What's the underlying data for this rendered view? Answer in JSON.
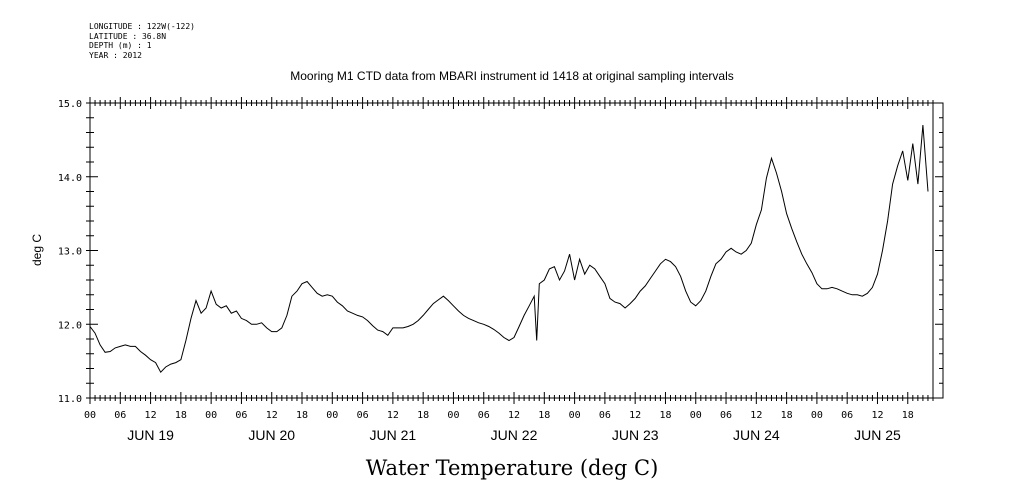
{
  "metadata": {
    "longitude": "LONGITUDE : 122W(-122)",
    "latitude": "LATITUDE : 36.8N",
    "depth": "DEPTH (m) : 1",
    "year": "YEAR : 2012"
  },
  "chart_data": {
    "type": "line",
    "title": "Mooring M1 CTD data from MBARI instrument id 1418 at original sampling intervals",
    "xlabel": "Water Temperature (deg C)",
    "ylabel": "deg C",
    "ylim": [
      11.0,
      15.0
    ],
    "yticks": [
      "11.0",
      "12.0",
      "13.0",
      "14.0",
      "15.0"
    ],
    "xlim_hours": [
      0,
      167
    ],
    "hour_ticks": [
      "00",
      "06",
      "12",
      "18",
      "00",
      "06",
      "12",
      "18",
      "00",
      "06",
      "12",
      "18",
      "00",
      "06",
      "12",
      "18",
      "00",
      "06",
      "12",
      "18",
      "00",
      "06",
      "12",
      "18",
      "00",
      "06",
      "12",
      "18"
    ],
    "day_labels": [
      "JUN 19",
      "JUN 20",
      "JUN 21",
      "JUN 22",
      "JUN 23",
      "JUN 24",
      "JUN 25"
    ],
    "grid": false,
    "series": [
      {
        "values": [
          [
            0,
            11.97
          ],
          [
            1,
            11.88
          ],
          [
            2,
            11.72
          ],
          [
            3,
            11.62
          ],
          [
            4,
            11.63
          ],
          [
            5,
            11.68
          ],
          [
            6,
            11.7
          ],
          [
            7,
            11.72
          ],
          [
            8,
            11.7
          ],
          [
            9,
            11.7
          ],
          [
            10,
            11.63
          ],
          [
            11,
            11.58
          ],
          [
            12,
            11.52
          ],
          [
            13,
            11.48
          ],
          [
            14,
            11.35
          ],
          [
            15,
            11.42
          ],
          [
            16,
            11.46
          ],
          [
            17,
            11.48
          ],
          [
            18,
            11.52
          ],
          [
            19,
            11.78
          ],
          [
            20,
            12.08
          ],
          [
            21,
            12.32
          ],
          [
            22,
            12.15
          ],
          [
            23,
            12.22
          ],
          [
            24,
            12.45
          ],
          [
            25,
            12.27
          ],
          [
            26,
            12.22
          ],
          [
            27,
            12.25
          ],
          [
            28,
            12.15
          ],
          [
            29,
            12.18
          ],
          [
            30,
            12.08
          ],
          [
            31,
            12.05
          ],
          [
            32,
            12.0
          ],
          [
            33,
            12.0
          ],
          [
            34,
            12.02
          ],
          [
            35,
            11.95
          ],
          [
            36,
            11.9
          ],
          [
            37,
            11.9
          ],
          [
            38,
            11.95
          ],
          [
            39,
            12.12
          ],
          [
            40,
            12.38
          ],
          [
            41,
            12.45
          ],
          [
            42,
            12.55
          ],
          [
            43,
            12.58
          ],
          [
            44,
            12.5
          ],
          [
            45,
            12.42
          ],
          [
            46,
            12.38
          ],
          [
            47,
            12.4
          ],
          [
            48,
            12.38
          ],
          [
            49,
            12.3
          ],
          [
            50,
            12.25
          ],
          [
            51,
            12.18
          ],
          [
            52,
            12.15
          ],
          [
            53,
            12.12
          ],
          [
            54,
            12.1
          ],
          [
            55,
            12.05
          ],
          [
            56,
            11.98
          ],
          [
            57,
            11.92
          ],
          [
            58,
            11.9
          ],
          [
            59,
            11.85
          ],
          [
            60,
            11.95
          ],
          [
            61,
            11.95
          ],
          [
            62,
            11.95
          ],
          [
            63,
            11.97
          ],
          [
            64,
            12.0
          ],
          [
            65,
            12.05
          ],
          [
            66,
            12.12
          ],
          [
            67,
            12.2
          ],
          [
            68,
            12.28
          ],
          [
            69,
            12.33
          ],
          [
            70,
            12.38
          ],
          [
            71,
            12.32
          ],
          [
            72,
            12.25
          ],
          [
            73,
            12.18
          ],
          [
            74,
            12.12
          ],
          [
            75,
            12.08
          ],
          [
            76,
            12.05
          ],
          [
            77,
            12.02
          ],
          [
            78,
            12.0
          ],
          [
            79,
            11.97
          ],
          [
            80,
            11.93
          ],
          [
            81,
            11.88
          ],
          [
            82,
            11.82
          ],
          [
            83,
            11.78
          ],
          [
            84,
            11.82
          ],
          [
            85,
            11.97
          ],
          [
            86,
            12.12
          ],
          [
            87,
            12.25
          ],
          [
            88,
            12.38
          ],
          [
            88.5,
            11.78
          ],
          [
            89,
            12.55
          ],
          [
            90,
            12.6
          ],
          [
            91,
            12.75
          ],
          [
            92,
            12.78
          ],
          [
            93,
            12.6
          ],
          [
            94,
            12.72
          ],
          [
            95,
            12.95
          ],
          [
            96,
            12.6
          ],
          [
            97,
            12.88
          ],
          [
            98,
            12.68
          ],
          [
            99,
            12.8
          ],
          [
            100,
            12.75
          ],
          [
            101,
            12.65
          ],
          [
            102,
            12.55
          ],
          [
            103,
            12.35
          ],
          [
            104,
            12.3
          ],
          [
            105,
            12.28
          ],
          [
            106,
            12.22
          ],
          [
            107,
            12.28
          ],
          [
            108,
            12.35
          ],
          [
            109,
            12.45
          ],
          [
            110,
            12.52
          ],
          [
            111,
            12.62
          ],
          [
            112,
            12.72
          ],
          [
            113,
            12.82
          ],
          [
            114,
            12.88
          ],
          [
            115,
            12.85
          ],
          [
            116,
            12.78
          ],
          [
            117,
            12.65
          ],
          [
            118,
            12.45
          ],
          [
            119,
            12.3
          ],
          [
            120,
            12.25
          ],
          [
            121,
            12.32
          ],
          [
            122,
            12.45
          ],
          [
            123,
            12.65
          ],
          [
            124,
            12.82
          ],
          [
            125,
            12.88
          ],
          [
            126,
            12.98
          ],
          [
            127,
            13.03
          ],
          [
            128,
            12.98
          ],
          [
            129,
            12.95
          ],
          [
            130,
            13.0
          ],
          [
            131,
            13.1
          ],
          [
            132,
            13.35
          ],
          [
            133,
            13.55
          ],
          [
            134,
            13.98
          ],
          [
            135,
            14.25
          ],
          [
            136,
            14.05
          ],
          [
            137,
            13.8
          ],
          [
            138,
            13.5
          ],
          [
            139,
            13.3
          ],
          [
            140,
            13.12
          ],
          [
            141,
            12.95
          ],
          [
            142,
            12.82
          ],
          [
            143,
            12.7
          ],
          [
            144,
            12.55
          ],
          [
            145,
            12.48
          ],
          [
            146,
            12.48
          ],
          [
            147,
            12.5
          ],
          [
            148,
            12.48
          ],
          [
            149,
            12.45
          ],
          [
            150,
            12.42
          ],
          [
            151,
            12.4
          ],
          [
            152,
            12.4
          ],
          [
            153,
            12.38
          ],
          [
            154,
            12.42
          ],
          [
            155,
            12.5
          ],
          [
            156,
            12.68
          ],
          [
            157,
            13.0
          ],
          [
            158,
            13.4
          ],
          [
            159,
            13.9
          ],
          [
            160,
            14.15
          ],
          [
            161,
            14.35
          ],
          [
            162,
            13.95
          ],
          [
            163,
            14.45
          ],
          [
            164,
            13.9
          ],
          [
            165,
            14.7
          ],
          [
            166,
            13.8
          ]
        ]
      }
    ]
  }
}
